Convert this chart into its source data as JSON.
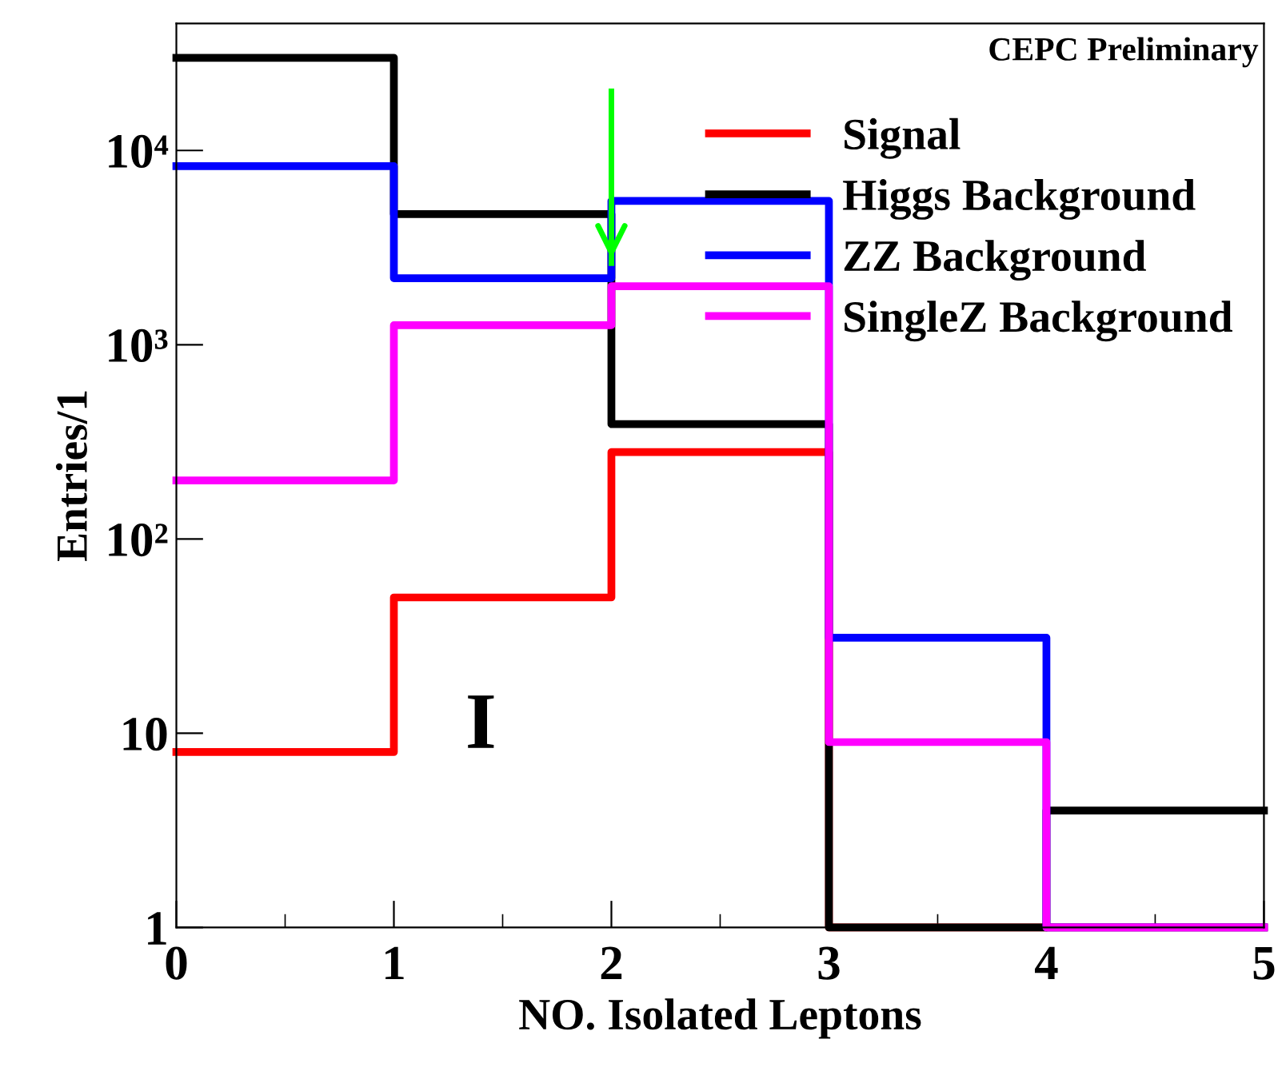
{
  "chart_data": {
    "type": "histogram",
    "xlabel": "NO. Isolated Leptons",
    "ylabel": "Entries/1",
    "bins": [
      0,
      1,
      2,
      3,
      4,
      5
    ],
    "series": [
      {
        "name": "Signal",
        "color": "#ff0000",
        "values": [
          8,
          50,
          280,
          1,
          1
        ]
      },
      {
        "name": "Higgs Background",
        "color": "#000000",
        "values": [
          30000,
          4700,
          390,
          1,
          4
        ]
      },
      {
        "name": "ZZ Background",
        "color": "#0000ff",
        "values": [
          8300,
          2200,
          5500,
          31,
          1
        ]
      },
      {
        "name": "SingleZ Background",
        "color": "#ff00ff",
        "values": [
          200,
          1260,
          2000,
          9,
          1
        ]
      }
    ],
    "log": "y",
    "xlim": [
      0,
      5
    ],
    "ylim": [
      1,
      45000
    ],
    "xticks": [
      0,
      1,
      2,
      3,
      4,
      5
    ],
    "yticks": [
      1,
      10,
      {
        "value": 100,
        "label": "10²"
      },
      {
        "value": 1000,
        "label": "10³"
      },
      {
        "value": 10000,
        "label": "10⁴"
      }
    ],
    "ref_lines": [
      {
        "axis": "x",
        "value": 2,
        "color": "#00ff00"
      }
    ],
    "annotations": [
      "CEPC Preliminary",
      "I"
    ],
    "legend": "top right",
    "grid": false
  }
}
